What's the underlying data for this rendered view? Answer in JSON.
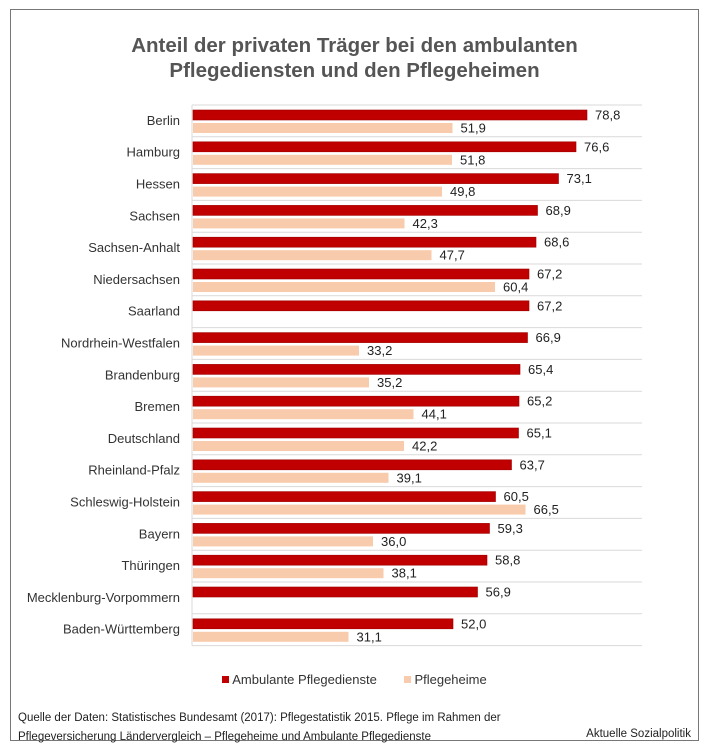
{
  "title_lines": [
    "Anteil der privaten Träger bei den ambulanten",
    "Pflegediensten und den Pflegeheimen"
  ],
  "colors": {
    "ambulant": "#C00000",
    "heime": "#F8CBAD",
    "grid": "#D9D9D9"
  },
  "legend": [
    {
      "label": "Ambulante Pflegedienste",
      "color": "#C00000"
    },
    {
      "label": "Pflegeheime",
      "color": "#F8CBAD"
    }
  ],
  "source": {
    "line1": "Quelle der Daten: Statistisches Bundesamt (2017): Pflegestatistik 2015. Pflege im Rahmen der",
    "line2": "Pflegeversicherung Ländervergleich – Pflegeheime und Ambulante Pflegedienste",
    "brand": "Aktuelle Sozialpolitik"
  },
  "chart_data": {
    "type": "bar",
    "orientation": "horizontal",
    "title": "Anteil der privaten Träger bei den ambulanten Pflegediensten und den Pflegeheimen",
    "xlabel": "",
    "ylabel": "",
    "xlim": [
      0,
      90
    ],
    "grid": true,
    "legend_position": "bottom",
    "categories": [
      "Berlin",
      "Hamburg",
      "Hessen",
      "Sachsen",
      "Sachsen-Anhalt",
      "Niedersachsen",
      "Saarland",
      "Nordrhein-Westfalen",
      "Brandenburg",
      "Bremen",
      "Deutschland",
      "Rheinland-Pfalz",
      "Schleswig-Holstein",
      "Bayern",
      "Thüringen",
      "Mecklenburg-Vorpommern",
      "Baden-Württemberg"
    ],
    "series": [
      {
        "name": "Ambulante Pflegedienste",
        "color": "#C00000",
        "values": [
          78.8,
          76.6,
          73.1,
          68.9,
          68.6,
          67.2,
          67.2,
          66.9,
          65.4,
          65.2,
          65.1,
          63.7,
          60.5,
          59.3,
          58.8,
          56.9,
          52.0
        ],
        "labels": [
          "78,8",
          "76,6",
          "73,1",
          "68,9",
          "68,6",
          "67,2",
          "67,2",
          "66,9",
          "65,4",
          "65,2",
          "65,1",
          "63,7",
          "60,5",
          "59,3",
          "58,8",
          "56,9",
          "52,0"
        ]
      },
      {
        "name": "Pflegeheime",
        "color": "#F8CBAD",
        "values": [
          51.9,
          51.8,
          49.8,
          42.3,
          47.7,
          60.4,
          null,
          33.2,
          35.2,
          44.1,
          42.2,
          39.1,
          66.5,
          36.0,
          38.1,
          null,
          31.1
        ],
        "labels": [
          "51,9",
          "51,8",
          "49,8",
          "42,3",
          "47,7",
          "60,4",
          null,
          "33,2",
          "35,2",
          "44,1",
          "42,2",
          "39,1",
          "66,5",
          "36,0",
          "38,1",
          null,
          "31,1"
        ]
      }
    ]
  }
}
